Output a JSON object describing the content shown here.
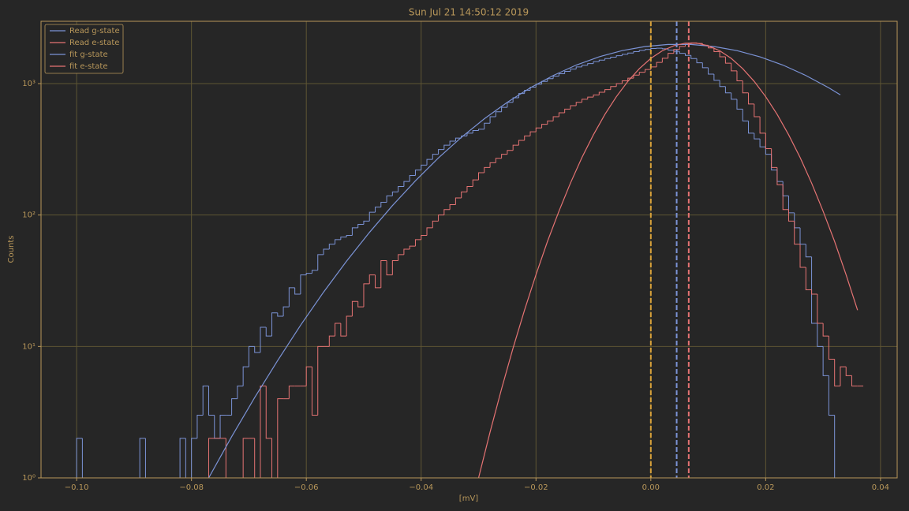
{
  "chart_data": {
    "type": "histogram",
    "title": "Sun Jul 21 14:50:12 2019",
    "x_label": "[mV]",
    "y_label": "Counts",
    "log_y": true,
    "grid": true,
    "legend": "upper left",
    "xlim": [
      -0.1062,
      0.0429
    ],
    "ylim": [
      1,
      2980
    ],
    "xticks": [
      {
        "value": -0.1,
        "label": "−0.10"
      },
      {
        "value": -0.08,
        "label": "−0.08"
      },
      {
        "value": -0.06,
        "label": "−0.06"
      },
      {
        "value": -0.04,
        "label": "−0.04"
      },
      {
        "value": -0.02,
        "label": "−0.02"
      },
      {
        "value": 0,
        "label": "0.00"
      },
      {
        "value": 0.02,
        "label": "0.02"
      },
      {
        "value": 0.04,
        "label": "0.04"
      }
    ],
    "yticks": [
      {
        "value": 1,
        "label": "10⁰"
      },
      {
        "value": 10,
        "label": "10¹"
      },
      {
        "value": 100,
        "label": "10²"
      },
      {
        "value": 1000,
        "label": "10³"
      }
    ],
    "bins": [
      -0.1,
      -0.099,
      -0.098,
      -0.097,
      -0.096,
      -0.095,
      -0.094,
      -0.093,
      -0.092,
      -0.091,
      -0.09,
      -0.089,
      -0.088,
      -0.087,
      -0.086,
      -0.085,
      -0.084,
      -0.083,
      -0.082,
      -0.081,
      -0.08,
      -0.079,
      -0.078,
      -0.077,
      -0.076,
      -0.075,
      -0.074,
      -0.073,
      -0.072,
      -0.071,
      -0.07,
      -0.069,
      -0.068,
      -0.067,
      -0.066,
      -0.065,
      -0.064,
      -0.063,
      -0.062,
      -0.061,
      -0.06,
      -0.059,
      -0.058,
      -0.057,
      -0.056,
      -0.055,
      -0.054,
      -0.053,
      -0.052,
      -0.051,
      -0.05,
      -0.049,
      -0.048,
      -0.047,
      -0.046,
      -0.045,
      -0.044,
      -0.043,
      -0.042,
      -0.041,
      -0.04,
      -0.039,
      -0.038,
      -0.037,
      -0.036,
      -0.035,
      -0.034,
      -0.033,
      -0.032,
      -0.031,
      -0.03,
      -0.029,
      -0.028,
      -0.027,
      -0.026,
      -0.025,
      -0.024,
      -0.023,
      -0.022,
      -0.021,
      -0.02,
      -0.019,
      -0.018,
      -0.017,
      -0.016,
      -0.015,
      -0.014,
      -0.013,
      -0.012,
      -0.011,
      -0.01,
      -0.009,
      -0.008,
      -0.007,
      -0.006,
      -0.005,
      -0.004,
      -0.003,
      -0.002,
      -0.001,
      0.0,
      0.001,
      0.002,
      0.003,
      0.004,
      0.005,
      0.006,
      0.007,
      0.008,
      0.009,
      0.01,
      0.011,
      0.012,
      0.013,
      0.014,
      0.015,
      0.016,
      0.017,
      0.018,
      0.019,
      0.02,
      0.021,
      0.022,
      0.023,
      0.024,
      0.025,
      0.026,
      0.027,
      0.028,
      0.029,
      0.03,
      0.031,
      0.032,
      0.033,
      0.034,
      0.035,
      0.036,
      0.037
    ],
    "series": [
      {
        "name": "Read g-state",
        "color": "#7b93d6",
        "kind": "histogram",
        "values": [
          2,
          0,
          0,
          0,
          0,
          0,
          0,
          0,
          0,
          0,
          0,
          2,
          0,
          0,
          0,
          0,
          0,
          0,
          2,
          0,
          2,
          3,
          5,
          3,
          2,
          3,
          3,
          4,
          5,
          7,
          10,
          9,
          14,
          12,
          18,
          17,
          20,
          28,
          25,
          35,
          36,
          38,
          50,
          55,
          60,
          65,
          68,
          70,
          80,
          85,
          90,
          105,
          115,
          125,
          140,
          150,
          165,
          180,
          200,
          220,
          240,
          265,
          290,
          315,
          340,
          365,
          385,
          400,
          420,
          440,
          450,
          500,
          560,
          610,
          660,
          720,
          780,
          840,
          890,
          940,
          990,
          1040,
          1090,
          1140,
          1190,
          1240,
          1290,
          1340,
          1380,
          1420,
          1470,
          1510,
          1550,
          1590,
          1630,
          1670,
          1710,
          1750,
          1790,
          1820,
          1850,
          1860,
          1840,
          1800,
          1760,
          1700,
          1640,
          1550,
          1440,
          1320,
          1180,
          1060,
          950,
          850,
          760,
          640,
          520,
          420,
          380,
          330,
          290,
          220,
          180,
          140,
          104,
          80,
          60,
          48,
          15,
          10,
          6,
          3,
          0,
          0,
          0,
          0,
          0
        ]
      },
      {
        "name": "Read e-state",
        "color": "#e57373",
        "kind": "histogram",
        "values": [
          0,
          0,
          0,
          0,
          0,
          0,
          0,
          0,
          0,
          0,
          0,
          0,
          0,
          0,
          0,
          0,
          0,
          0,
          0,
          0,
          0,
          0,
          0,
          2,
          2,
          2,
          0,
          0,
          0,
          2,
          2,
          0,
          5,
          2,
          0,
          4,
          4,
          5,
          5,
          5,
          7,
          3,
          10,
          10,
          12,
          15,
          12,
          17,
          22,
          20,
          30,
          35,
          28,
          45,
          35,
          45,
          50,
          55,
          58,
          65,
          70,
          80,
          90,
          100,
          110,
          120,
          135,
          150,
          165,
          185,
          210,
          230,
          250,
          270,
          290,
          310,
          340,
          370,
          400,
          430,
          460,
          490,
          520,
          560,
          600,
          640,
          680,
          720,
          760,
          790,
          820,
          860,
          900,
          950,
          1000,
          1050,
          1100,
          1160,
          1220,
          1280,
          1340,
          1450,
          1560,
          1700,
          1820,
          1920,
          1990,
          2040,
          2020,
          1960,
          1870,
          1750,
          1600,
          1430,
          1250,
          1050,
          850,
          700,
          560,
          420,
          320,
          230,
          170,
          110,
          90,
          60,
          40,
          27,
          25,
          15,
          12,
          8,
          5,
          7,
          6,
          5,
          5
        ]
      },
      {
        "name": "fit g-state",
        "color": "#7b93d6",
        "kind": "line",
        "x": [
          -0.077,
          -0.073,
          -0.069,
          -0.065,
          -0.061,
          -0.057,
          -0.053,
          -0.049,
          -0.045,
          -0.041,
          -0.037,
          -0.033,
          -0.029,
          -0.025,
          -0.021,
          -0.017,
          -0.013,
          -0.009,
          -0.005,
          -0.001,
          0.003,
          0.007,
          0.011,
          0.015,
          0.019,
          0.023,
          0.027,
          0.031,
          0.033
        ],
        "values": [
          1.0,
          2.06,
          4.08,
          7.8,
          14.5,
          25.9,
          44.5,
          73.8,
          118,
          182,
          272,
          390,
          540,
          721,
          929,
          1153,
          1384,
          1600,
          1782,
          1915,
          1986,
          1986,
          1915,
          1782,
          1600,
          1384,
          1153,
          929,
          822
        ]
      },
      {
        "name": "fit e-state",
        "color": "#e57373",
        "kind": "line",
        "x": [
          -0.03,
          -0.028,
          -0.026,
          -0.024,
          -0.022,
          -0.02,
          -0.018,
          -0.016,
          -0.014,
          -0.012,
          -0.01,
          -0.008,
          -0.006,
          -0.004,
          -0.002,
          0.0,
          0.002,
          0.004,
          0.006,
          0.008,
          0.01,
          0.012,
          0.014,
          0.016,
          0.018,
          0.02,
          0.022,
          0.024,
          0.026,
          0.028,
          0.03,
          0.032,
          0.034,
          0.036
        ],
        "values": [
          1.0,
          2.23,
          4.75,
          9.7,
          18.9,
          35.2,
          63,
          107,
          175,
          274,
          408,
          583,
          796,
          1040,
          1300,
          1556,
          1778,
          1941,
          2032,
          2032,
          1941,
          1778,
          1556,
          1300,
          1040,
          796,
          583,
          408,
          274,
          175,
          107,
          63,
          35.2,
          18.9
        ]
      }
    ],
    "vlines": [
      {
        "value": 0,
        "color": "#d9a23a"
      },
      {
        "value": 0.0045,
        "color": "#7b93d6"
      },
      {
        "value": 0.0066,
        "color": "#e57373"
      }
    ]
  }
}
